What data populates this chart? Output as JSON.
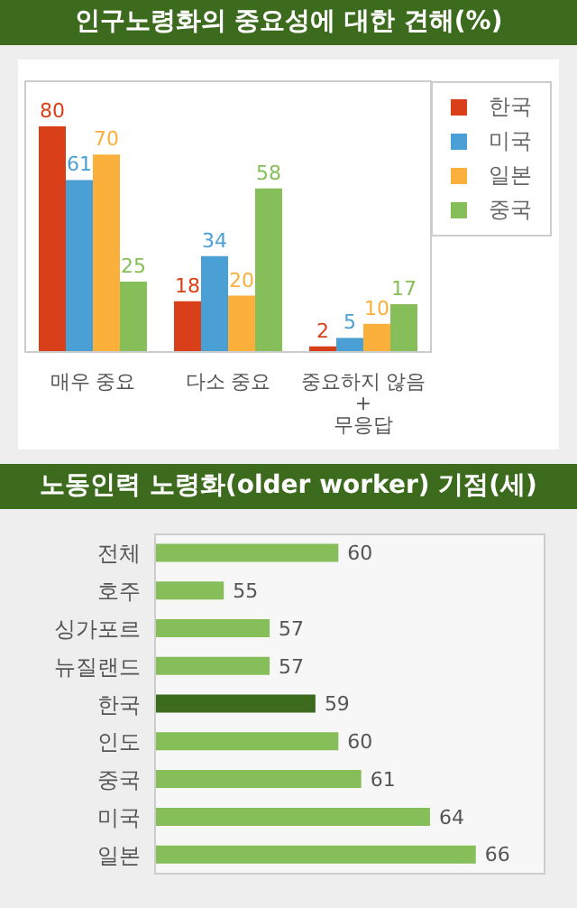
{
  "chart_data": [
    {
      "type": "bar",
      "title": "인구노령화의 중요성에 대한 견해(%)",
      "categories": [
        "매우 중요",
        "다소 중요",
        "중요하지 않음\n+\n무응답"
      ],
      "series": [
        {
          "name": "한국",
          "color": "#d9401a",
          "values": [
            80,
            18,
            2
          ]
        },
        {
          "name": "미국",
          "color": "#4a9fd4",
          "values": [
            61,
            34,
            5
          ]
        },
        {
          "name": "일본",
          "color": "#fbb03b",
          "values": [
            70,
            20,
            10
          ]
        },
        {
          "name": "중국",
          "color": "#86bf5a",
          "values": [
            25,
            58,
            17
          ]
        }
      ],
      "ylim": [
        0,
        96
      ],
      "data_labels": true,
      "legend": "top right"
    },
    {
      "type": "bar",
      "orientation": "horizontal",
      "title": "노동인력 노령화(older worker) 기점(세)",
      "categories": [
        "전체",
        "호주",
        "싱가포르",
        "뉴질랜드",
        "한국",
        "인도",
        "중국",
        "미국",
        "일본"
      ],
      "values": [
        60,
        55,
        57,
        57,
        59,
        60,
        61,
        64,
        66
      ],
      "colors": [
        "#86bf5a",
        "#86bf5a",
        "#86bf5a",
        "#86bf5a",
        "#3d6b1e",
        "#86bf5a",
        "#86bf5a",
        "#86bf5a",
        "#86bf5a"
      ],
      "xlim": [
        52,
        69
      ],
      "data_labels": true
    }
  ]
}
